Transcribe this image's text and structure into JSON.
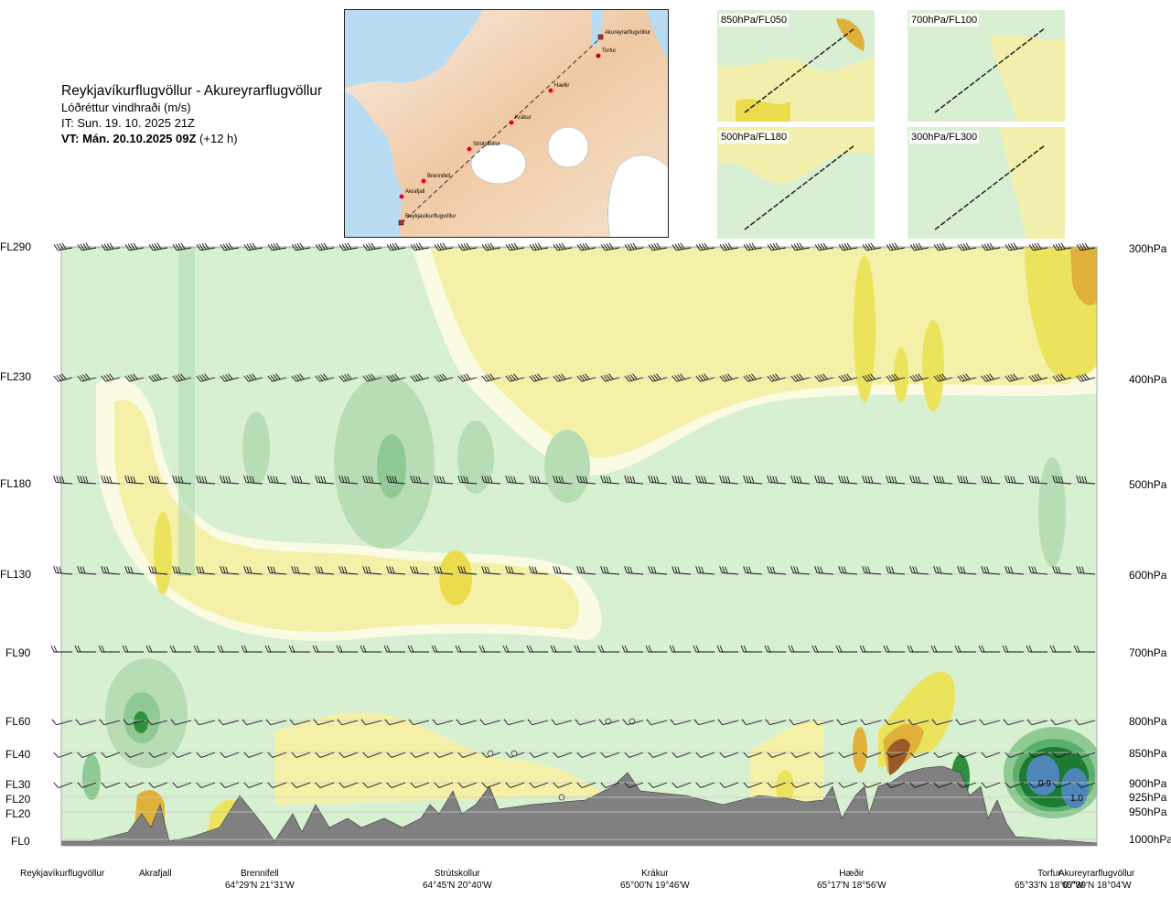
{
  "header": {
    "route": "Reykjavíkurflugvöllur - Akureyrarflugvöllur",
    "subtitle": "Lóðréttur vindhraði (m/s)",
    "issue": "IT: Sun. 19. 10. 2025 21Z",
    "valid_bold": "VT: Mán. 20.10.2025 09Z",
    "valid_lead": "(+12 h)"
  },
  "overview_map": {
    "waypoints": [
      "Akureyrarflugvöllur",
      "Torfur",
      "Hæðir",
      "Krákur",
      "Strútskollur",
      "Brennifell",
      "Akrafjall",
      "Reykjavíkurflugvöllur"
    ]
  },
  "thumbnails": [
    {
      "label": "850hPa/FL050"
    },
    {
      "label": "700hPa/FL100"
    },
    {
      "label": "500hPa/FL180"
    },
    {
      "label": "300hPa/FL300"
    }
  ],
  "chart_data": {
    "type": "heatmap",
    "title": "Lóðréttur vindhraði (m/s)",
    "y_left_labels": [
      "FL290",
      "FL230",
      "FL180",
      "FL130",
      "FL90",
      "FL60",
      "FL40",
      "FL30",
      "FL20",
      "FL20",
      "FL0"
    ],
    "y_right_labels": [
      "300hPa",
      "400hPa",
      "500hPa",
      "600hPa",
      "700hPa",
      "800hPa",
      "850hPa",
      "900hPa",
      "925hPa",
      "950hPa",
      "1000hPa"
    ],
    "pressure_levels_hPa": [
      300,
      400,
      500,
      600,
      700,
      800,
      850,
      900,
      925,
      950,
      1000
    ],
    "ylim_hPa": [
      1000,
      300
    ],
    "x_locations": [
      {
        "name": "Reykjavíkurflugvöllur",
        "coord": ""
      },
      {
        "name": "Akrafjall",
        "coord": ""
      },
      {
        "name": "Brennifell",
        "coord": "64°29'N 21°31'W"
      },
      {
        "name": "Strútskollur",
        "coord": "64°45'N 20°40'W"
      },
      {
        "name": "Krákur",
        "coord": "65°00'N 19°46'W"
      },
      {
        "name": "Hæðir",
        "coord": "65°17'N 18°56'W"
      },
      {
        "name": "Torfur",
        "coord": "65°33'N 18°07'W"
      },
      {
        "name": "Akureyrarflugvöllur",
        "coord": "65°39'N 18°04'W"
      }
    ],
    "contour_labels": [
      "0.9",
      "1.0"
    ],
    "color_scale": [
      "#c9a75a",
      "#e0b13a",
      "#ece35c",
      "#f4f0a8",
      "#fbfbe4",
      "#d8f0d2",
      "#b8ddb5",
      "#8fc994",
      "#5ab06a",
      "#2e8f3e",
      "#1d7a32",
      "#4f86b8"
    ],
    "terrain_color": "#808080",
    "gridlines": true
  }
}
